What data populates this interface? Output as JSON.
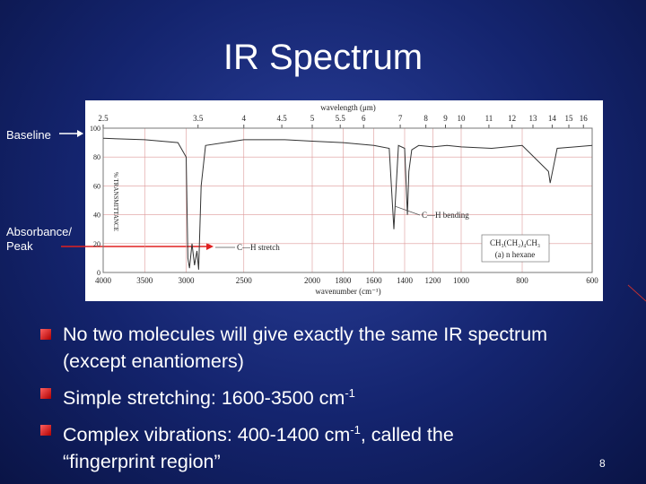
{
  "title": "IR Spectrum",
  "callouts": {
    "baseline": "Baseline",
    "peak": [
      "Absorbance/",
      "Peak"
    ]
  },
  "spectrum": {
    "type": "line",
    "x_label_top": "wavelength (μm)",
    "x_label": "wavenumber (cm⁻¹)",
    "y_label": "% TRANSMITTANCE",
    "x_top_ticks": [
      2.5,
      3.5,
      4,
      4.5,
      5,
      5.5,
      6,
      7,
      8,
      9,
      10,
      11,
      12,
      13,
      14,
      15,
      16
    ],
    "xlim": [
      4000,
      600
    ],
    "xticks": [
      4000,
      3500,
      3000,
      2500,
      2000,
      1800,
      1600,
      1400,
      1200,
      1000,
      800,
      600
    ],
    "ylim": [
      0,
      100
    ],
    "yticks": [
      0,
      20,
      40,
      60,
      80,
      100
    ],
    "grid": true,
    "annotations": [
      "C—H bending",
      "C—H stretch"
    ],
    "compound": "CH₃(CH₂)₄CH₃",
    "compound_name": "(a) n hexane",
    "color": "#333333",
    "x": [
      4000,
      3500,
      3100,
      3000,
      2980,
      2960,
      2930,
      2900,
      2870,
      2850,
      2820,
      2780,
      2500,
      2200,
      2000,
      1800,
      1600,
      1500,
      1470,
      1460,
      1440,
      1400,
      1380,
      1370,
      1350,
      1300,
      1200,
      1100,
      1000,
      900,
      800,
      725,
      720,
      700,
      600
    ],
    "values": [
      93,
      92,
      90,
      80,
      10,
      3,
      20,
      5,
      15,
      2,
      60,
      88,
      92,
      92,
      91,
      90,
      88,
      86,
      30,
      50,
      88,
      86,
      40,
      70,
      85,
      88,
      87,
      88,
      87,
      86,
      88,
      70,
      62,
      86,
      88
    ]
  },
  "bullets": [
    [
      "No two molecules will give exactly the same IR spectrum (except enantiomers)"
    ],
    [
      "Simple stretching:  1600-3500 cm",
      "-1"
    ],
    [
      "Complex vibrations:  400-1400 cm",
      "-1",
      ", called the",
      "“fingerprint region”"
    ]
  ],
  "page_number": "8"
}
